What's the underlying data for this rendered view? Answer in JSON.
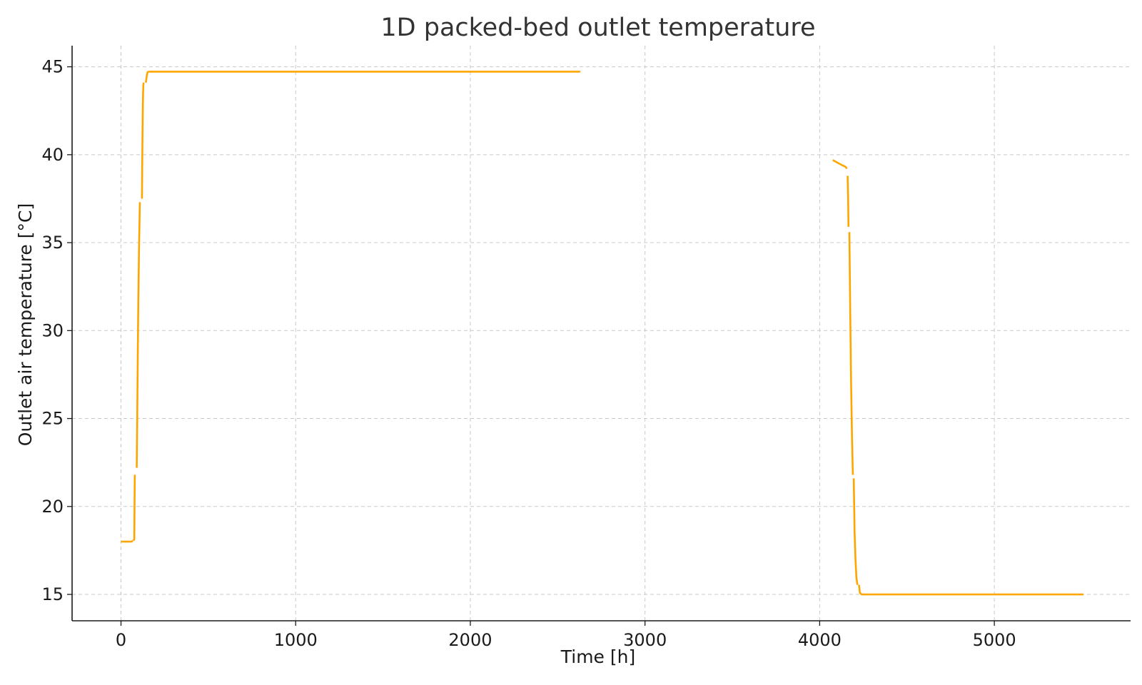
{
  "chart_data": {
    "type": "line",
    "title": "1D packed-bed outlet temperature",
    "xlabel": "Time [h]",
    "ylabel": "Outlet air temperature [°C]",
    "xlim": [
      -280,
      5780
    ],
    "ylim": [
      13.5,
      46.2
    ],
    "xticks": [
      0,
      1000,
      2000,
      3000,
      4000,
      5000
    ],
    "yticks": [
      15,
      20,
      25,
      30,
      35,
      40,
      45
    ],
    "xtick_labels": [
      "0",
      "1000",
      "2000",
      "3000",
      "4000",
      "5000"
    ],
    "ytick_labels": [
      "15",
      "20",
      "25",
      "30",
      "35",
      "40",
      "45"
    ],
    "grid": true,
    "color": "#FFA500",
    "series": [
      {
        "segments": [
          {
            "x": [
              0,
              20,
              40,
              60,
              68
            ],
            "y": [
              18.0,
              18.0,
              18.0,
              18.0,
              18.05
            ]
          },
          {
            "x": [
              72,
              76,
              79
            ],
            "y": [
              18.05,
              18.15,
              21.8
            ]
          },
          {
            "x": [
              90,
              93,
              96,
              99,
              103,
              108
            ],
            "y": [
              22.2,
              25.0,
              28.5,
              31.5,
              34.5,
              37.3
            ]
          },
          {
            "x": [
              120,
              122,
              124,
              126,
              128,
              130
            ],
            "y": [
              37.5,
              40.0,
              42.0,
              43.3,
              44.0,
              44.1
            ]
          },
          {
            "x": [
              142,
              148,
              152,
              158
            ],
            "y": [
              44.1,
              44.5,
              44.7,
              44.72
            ]
          },
          {
            "x": [
              158,
              2630
            ],
            "y": [
              44.72,
              44.72
            ]
          }
        ]
      },
      {
        "segments": [
          {
            "x": [
              4075,
              4110,
              4150,
              4155
            ],
            "y": [
              39.7,
              39.5,
              39.3,
              39.2
            ]
          },
          {
            "x": [
              4160,
              4163,
              4165
            ],
            "y": [
              38.8,
              37.5,
              35.9
            ]
          },
          {
            "x": [
              4170,
              4175,
              4180,
              4185,
              4190
            ],
            "y": [
              35.6,
              31.0,
              27.0,
              24.0,
              21.8
            ]
          },
          {
            "x": [
              4195,
              4200,
              4205,
              4210,
              4215,
              4218
            ],
            "y": [
              21.6,
              18.5,
              17.0,
              16.0,
              15.6,
              15.55
            ]
          },
          {
            "x": [
              4225,
              4230,
              4240,
              4260,
              4300
            ],
            "y": [
              15.55,
              15.1,
              15.0,
              15.0,
              15.0
            ]
          },
          {
            "x": [
              4300,
              5510
            ],
            "y": [
              15.0,
              15.0
            ]
          }
        ]
      }
    ]
  }
}
